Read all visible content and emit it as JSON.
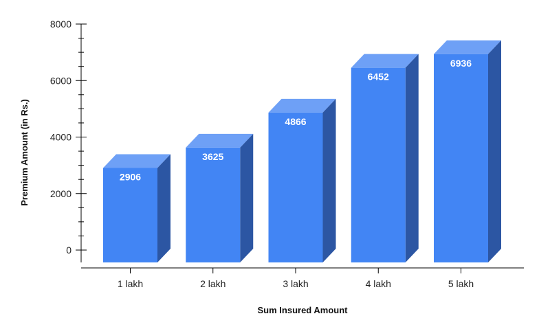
{
  "chart_data": {
    "type": "bar",
    "categories": [
      "1 lakh",
      "2 lakh",
      "3 lakh",
      "4 lakh",
      "5 lakh"
    ],
    "values": [
      2906,
      3625,
      4866,
      6452,
      6936
    ],
    "data_labels": [
      "2906",
      "3625",
      "4866",
      "6452",
      "6936"
    ],
    "title": "",
    "xlabel": "Sum Insured Amount",
    "ylabel": "Premium Amount (in Rs.)",
    "ylim": [
      0,
      8000
    ],
    "yticks": [
      0,
      2000,
      4000,
      6000,
      8000
    ],
    "ytick_labels": [
      "0",
      "2000",
      "4000",
      "6000",
      "8000"
    ],
    "grid": false,
    "legend": "none",
    "style": "3d",
    "colors": {
      "bar_front": "#4285f4",
      "bar_top": "#6ea0f6",
      "bar_side": "#2c56a3",
      "axis": "#000000"
    }
  }
}
